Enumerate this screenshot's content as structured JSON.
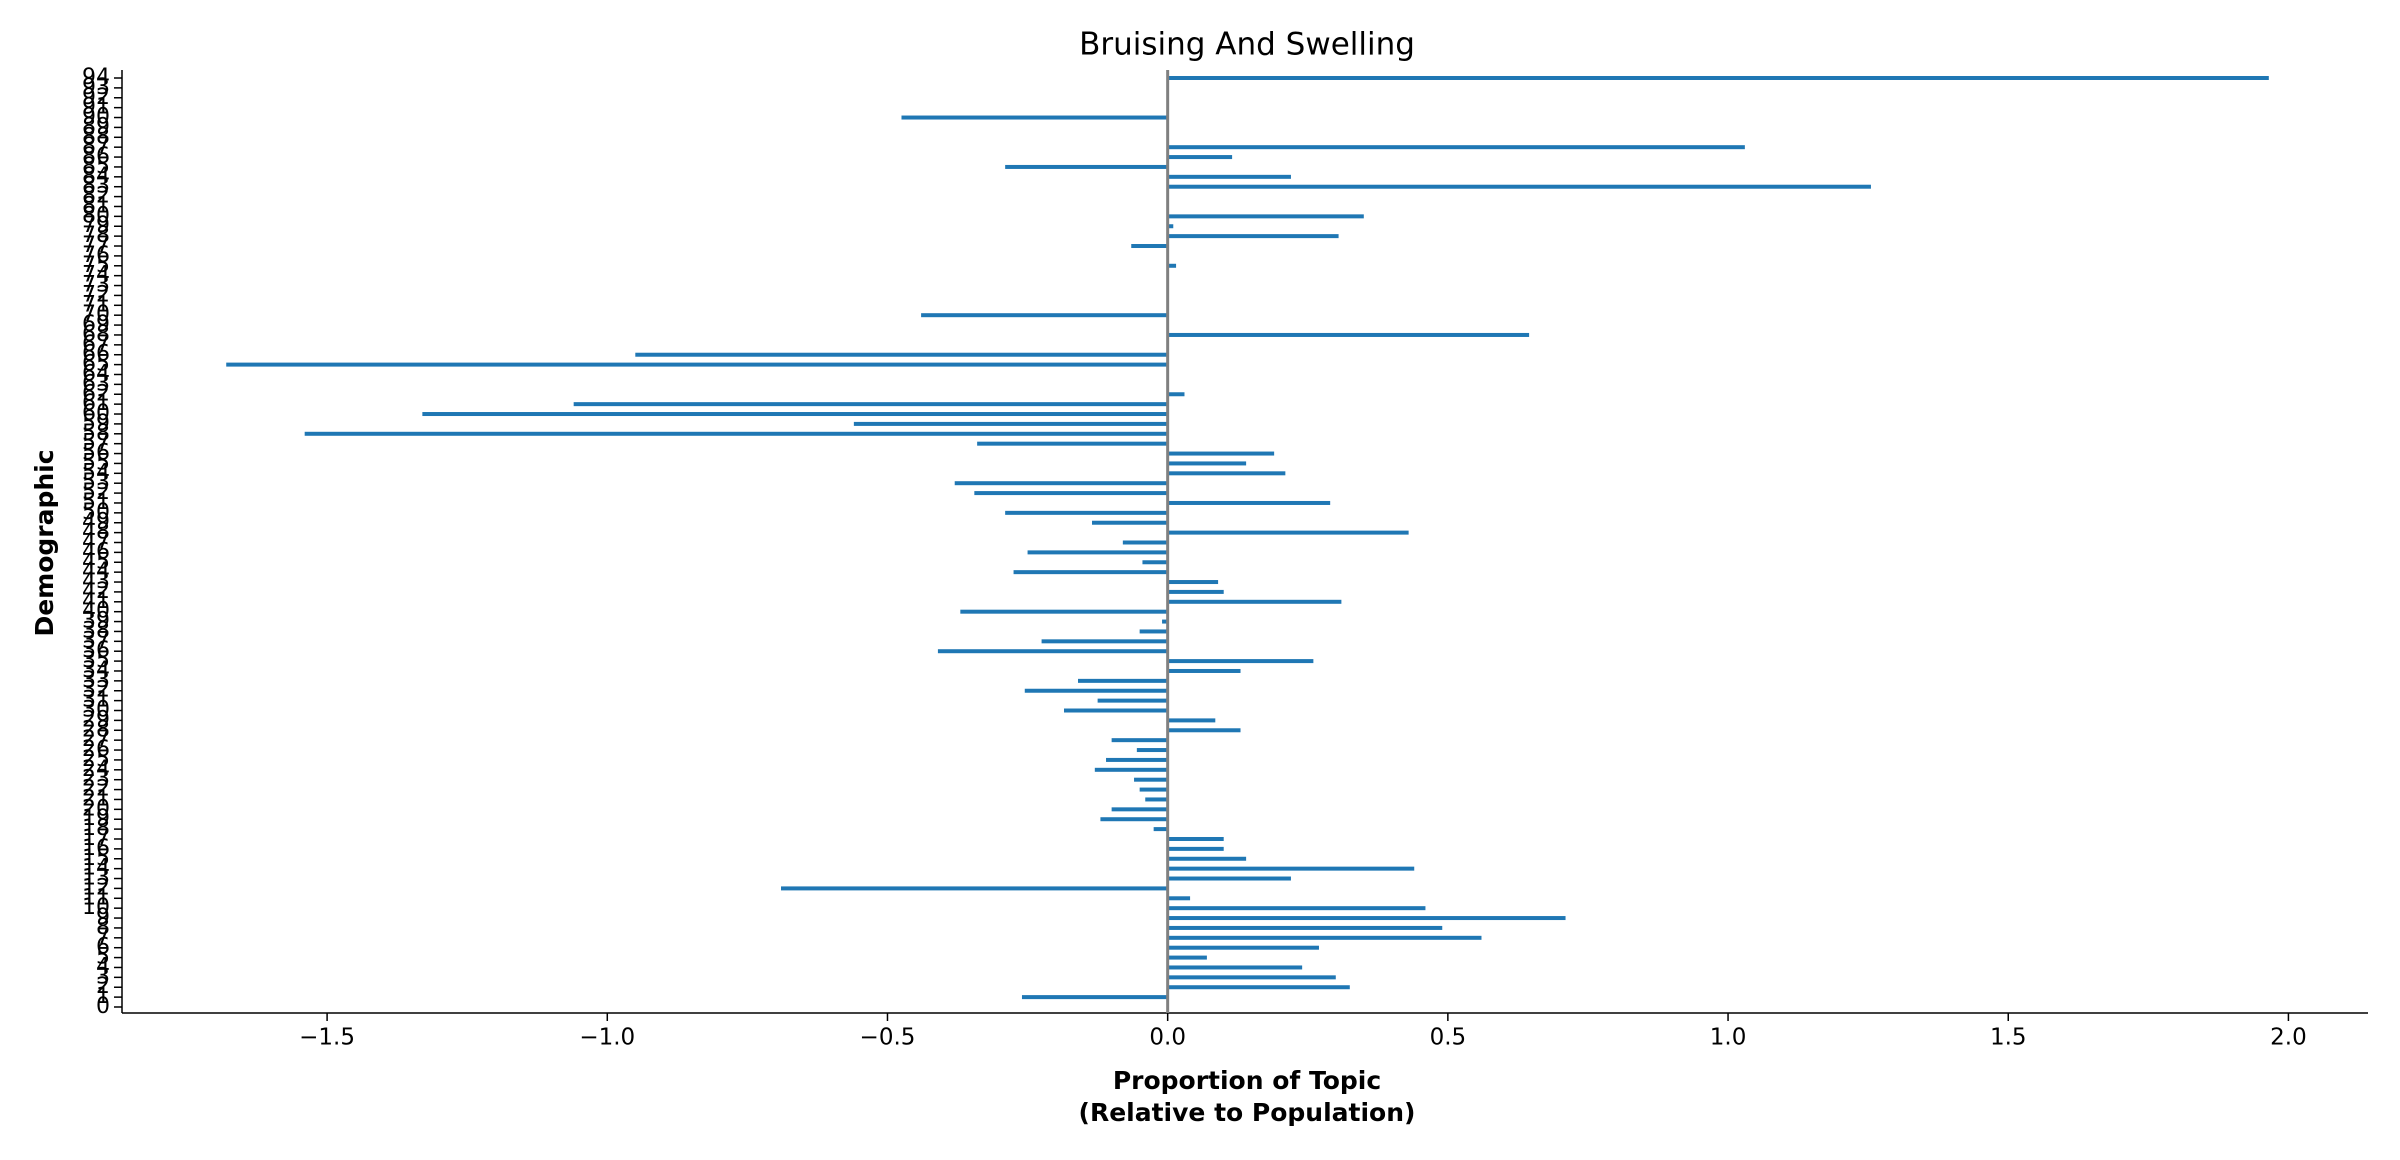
{
  "chart_data": {
    "type": "barh",
    "title": "Bruising And Swelling",
    "xlabel": [
      "Proportion of Topic",
      "(Relative to Population)"
    ],
    "ylabel": "Demographic",
    "color": "#1f77b4",
    "zero_line_color": "#808080",
    "categories": [
      "0",
      "1",
      "2",
      "3",
      "4",
      "5",
      "6",
      "7",
      "8",
      "9",
      "10",
      "11",
      "12",
      "13",
      "14",
      "15",
      "16",
      "17",
      "18",
      "19",
      "20",
      "21",
      "22",
      "23",
      "24",
      "25",
      "26",
      "27",
      "28",
      "29",
      "30",
      "31",
      "32",
      "33",
      "34",
      "35",
      "36",
      "37",
      "38",
      "39",
      "40",
      "41",
      "42",
      "43",
      "44",
      "45",
      "46",
      "47",
      "48",
      "49",
      "50",
      "51",
      "52",
      "53",
      "54",
      "55",
      "56",
      "57",
      "58",
      "59",
      "60",
      "61",
      "62",
      "63",
      "64",
      "65",
      "66",
      "67",
      "68",
      "69",
      "70",
      "71",
      "72",
      "73",
      "74",
      "75",
      "76",
      "77",
      "78",
      "79",
      "80",
      "81",
      "82",
      "83",
      "84",
      "85",
      "86",
      "87",
      "88",
      "89",
      "90",
      "91",
      "92",
      "93",
      "94"
    ],
    "values": [
      0,
      -0.26,
      0.325,
      0.3,
      0.24,
      0.07,
      0.27,
      0.56,
      0.49,
      0.71,
      0.46,
      0.04,
      -0.69,
      0.22,
      0.44,
      0.14,
      0.1,
      0.1,
      -0.025,
      -0.12,
      -0.1,
      -0.04,
      -0.05,
      -0.06,
      -0.13,
      -0.11,
      -0.055,
      -0.1,
      0.13,
      0.085,
      -0.185,
      -0.125,
      -0.255,
      -0.16,
      0.13,
      0.26,
      -0.41,
      -0.225,
      -0.05,
      -0.01,
      -0.37,
      0.31,
      0.1,
      0.09,
      -0.275,
      -0.045,
      -0.25,
      -0.08,
      0.43,
      -0.135,
      -0.29,
      0.29,
      -0.345,
      -0.38,
      0.21,
      0.14,
      0.19,
      -0.34,
      -1.54,
      -0.56,
      -1.33,
      -1.06,
      0.03,
      0,
      0,
      -1.68,
      -0.95,
      0,
      0.645,
      0,
      -0.44,
      0,
      0,
      0,
      0,
      0.015,
      0,
      -0.065,
      0.305,
      0.01,
      0.35,
      0,
      0,
      1.255,
      0.22,
      -0.29,
      0.115,
      1.03,
      0,
      0,
      -0.475,
      0,
      0,
      0,
      1.965
    ],
    "xlim": [
      -1.866,
      2.142
    ],
    "xticks": [
      {
        "value": -1.5,
        "label": "−1.5"
      },
      {
        "value": -1.0,
        "label": "−1.0"
      },
      {
        "value": -0.5,
        "label": "−0.5"
      },
      {
        "value": 0,
        "label": "0.0"
      },
      {
        "value": 0.5,
        "label": "0.5"
      },
      {
        "value": 1.0,
        "label": "1.0"
      },
      {
        "value": 1.5,
        "label": "1.5"
      },
      {
        "value": 2.0,
        "label": "2.0"
      }
    ]
  }
}
